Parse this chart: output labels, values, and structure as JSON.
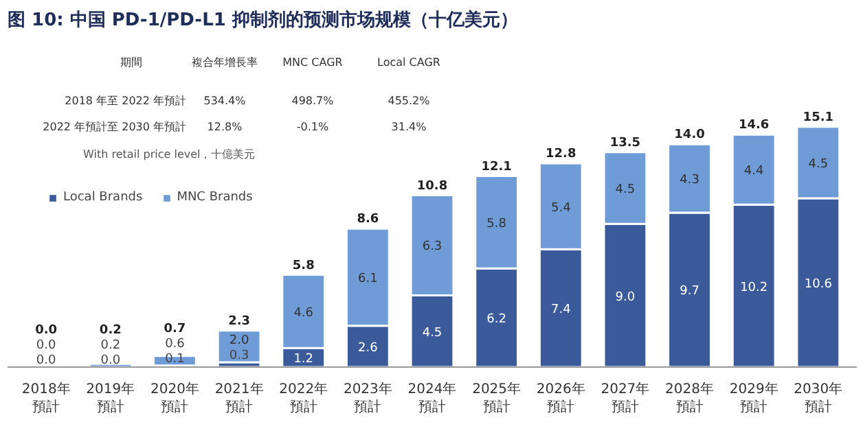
{
  "chart_data": {
    "type": "bar",
    "title": "图 10: 中国 PD-1/PD-L1 抑制剂的预测市场规模（十亿美元）",
    "categories": [
      "2018年預計",
      "2019年預計",
      "2020年預計",
      "2021年預計",
      "2022年預計",
      "2023年預計",
      "2024年預計",
      "2025年預計",
      "2026年預計",
      "2027年預計",
      "2028年預計",
      "2029年預計",
      "2030年預計"
    ],
    "stacked": true,
    "legend": "top left",
    "grid": false,
    "tick_labels": "x",
    "series": [
      {
        "name": "Local Brands",
        "color": "#3b5a9a",
        "values": [
          0.0,
          0.0,
          0.1,
          0.3,
          1.2,
          2.6,
          4.5,
          6.2,
          7.4,
          9.0,
          9.7,
          10.2,
          10.6
        ],
        "value_labels": [
          "0.0",
          "0.0",
          "0.1",
          "0.3",
          "1.2",
          "2.6",
          "4.5",
          "6.2",
          "7.4",
          "9.0",
          "9.7",
          "10.2",
          "10.6"
        ]
      },
      {
        "name": "MNC Brands",
        "color": "#6f9bd6",
        "values": [
          0.0,
          0.2,
          0.6,
          2.0,
          4.6,
          6.1,
          6.3,
          5.8,
          5.4,
          4.5,
          4.3,
          4.4,
          4.5
        ],
        "value_labels": [
          "0.0",
          "0.2",
          "0.6",
          "2.0",
          "4.6",
          "6.1",
          "6.3",
          "5.8",
          "5.4",
          "4.5",
          "4.3",
          "4.4",
          "4.5"
        ]
      }
    ],
    "totals": [
      "0.0",
      "0.2",
      "0.7",
      "2.3",
      "5.8",
      "8.6",
      "10.8",
      "12.1",
      "12.8",
      "13.5",
      "14.0",
      "14.6",
      "15.1"
    ],
    "annotations": [
      "期間",
      "複合年增長率",
      "MNC CAGR",
      "Local CAGR",
      "2018 年至 2022 年預計",
      "534.4%",
      "498.7%",
      "455.2%",
      "2022 年預計至 2030 年預計",
      "12.8%",
      "-0.1%",
      "31.4%",
      "With retail price level，十億美元"
    ]
  }
}
